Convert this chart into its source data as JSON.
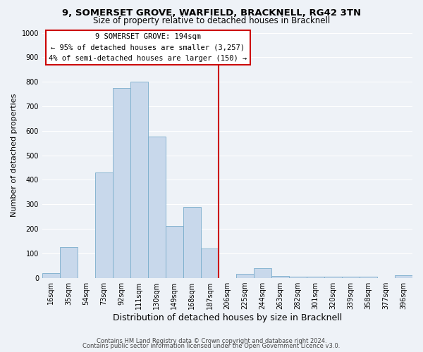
{
  "title_line1": "9, SOMERSET GROVE, WARFIELD, BRACKNELL, RG42 3TN",
  "title_line2": "Size of property relative to detached houses in Bracknell",
  "xlabel": "Distribution of detached houses by size in Bracknell",
  "ylabel": "Number of detached properties",
  "bin_labels": [
    "16sqm",
    "35sqm",
    "54sqm",
    "73sqm",
    "92sqm",
    "111sqm",
    "130sqm",
    "149sqm",
    "168sqm",
    "187sqm",
    "206sqm",
    "225sqm",
    "244sqm",
    "263sqm",
    "282sqm",
    "301sqm",
    "320sqm",
    "339sqm",
    "358sqm",
    "377sqm",
    "396sqm"
  ],
  "bar_heights": [
    18,
    125,
    0,
    430,
    775,
    800,
    575,
    210,
    290,
    120,
    0,
    15,
    40,
    8,
    5,
    5,
    5,
    5,
    5,
    0,
    10
  ],
  "bar_color": "#c8d8eb",
  "bar_edge_color": "#7aadcc",
  "vline_color": "#cc0000",
  "vline_x": 9.5,
  "annotation_title": "9 SOMERSET GROVE: 194sqm",
  "annotation_line1": "← 95% of detached houses are smaller (3,257)",
  "annotation_line2": "4% of semi-detached houses are larger (150) →",
  "annotation_box_color": "#ffffff",
  "annotation_box_edge_color": "#cc0000",
  "ylim": [
    0,
    1000
  ],
  "yticks": [
    0,
    100,
    200,
    300,
    400,
    500,
    600,
    700,
    800,
    900,
    1000
  ],
  "footnote_line1": "Contains HM Land Registry data © Crown copyright and database right 2024.",
  "footnote_line2": "Contains public sector information licensed under the Open Government Licence v3.0.",
  "bg_color": "#eef2f7",
  "grid_color": "#ffffff",
  "title_fontsize": 9.5,
  "subtitle_fontsize": 8.5,
  "xlabel_fontsize": 9,
  "ylabel_fontsize": 8,
  "tick_fontsize": 7,
  "footnote_fontsize": 6
}
